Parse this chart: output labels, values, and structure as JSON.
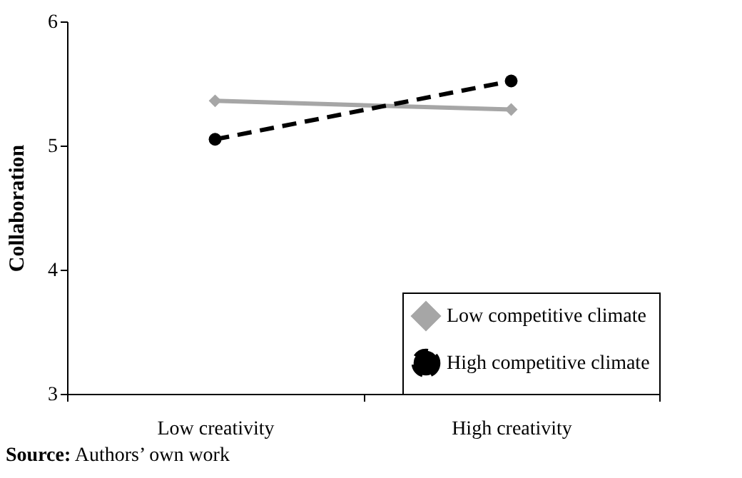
{
  "chart_data": {
    "type": "line",
    "ylabel": "Collaboration",
    "categories": [
      "Low creativity",
      "High creativity"
    ],
    "series": [
      {
        "name": "Low competitive climate",
        "color": "#a6a6a6",
        "values": [
          5.36,
          5.29
        ],
        "marker": "diamond",
        "line_style": "solid"
      },
      {
        "name": "High competitive climate",
        "color": "#000000",
        "values": [
          5.05,
          5.52
        ],
        "marker": "circle",
        "line_style": "dashed"
      }
    ],
    "ylim": [
      3,
      6
    ],
    "yticks": [
      3,
      4,
      5,
      6
    ],
    "grid": false,
    "legend": "bottom right",
    "annotations": [
      "Source: Authors’ own work"
    ]
  }
}
